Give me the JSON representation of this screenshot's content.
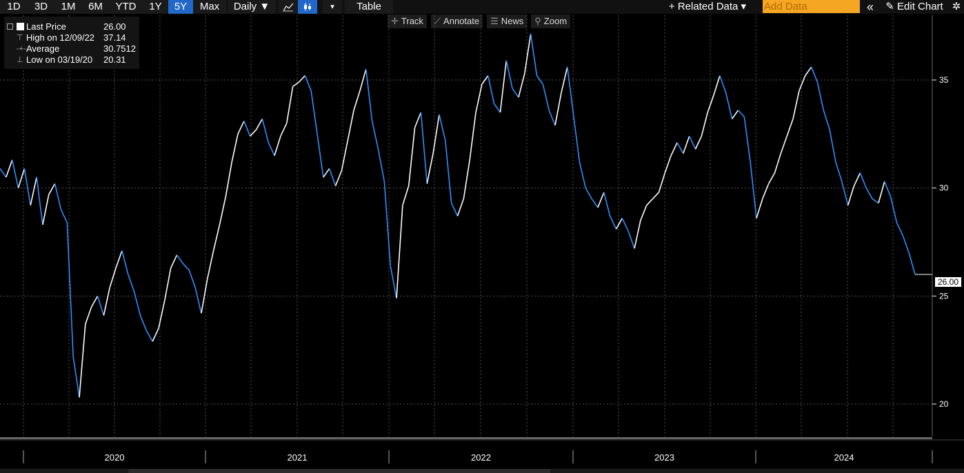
{
  "toolbar": {
    "ranges": [
      "1D",
      "3D",
      "1M",
      "6M",
      "YTD",
      "1Y",
      "5Y",
      "Max"
    ],
    "active_range": "5Y",
    "frequency": "Daily ▼",
    "dropdown_caret": "▾",
    "table_label": "Table",
    "related_data": "+ Related Data ▾",
    "add_data_placeholder": "Add Data",
    "collapse_icon_glyph": "«",
    "edit_chart": "✎ Edit Chart",
    "settings_glyph": "✲"
  },
  "subbar": {
    "track": "Track",
    "annotate": "Annotate",
    "news": "News",
    "zoom": "Zoom"
  },
  "legend": [
    {
      "name": "Last Price",
      "value": "26.00"
    },
    {
      "name": "High on 12/09/22",
      "value": "37.14"
    },
    {
      "name": "Average",
      "value": "30.7512"
    },
    {
      "name": "Low on 03/19/20",
      "value": "20.31"
    }
  ],
  "last_price_label": "26.00",
  "colors": {
    "background": "#000000",
    "price_up": "#ffffff",
    "price_down": "#2f8fff",
    "grid": "#555555"
  },
  "chart_data": {
    "type": "line",
    "title": "",
    "xlabel": "",
    "ylabel": "",
    "x_ticks": [
      "2020",
      "2021",
      "2022",
      "2023",
      "2024"
    ],
    "y_ticks": [
      20,
      25,
      30,
      35
    ],
    "ylim": [
      18.5,
      38
    ],
    "grid": true,
    "series": [
      {
        "values": [
          30.9,
          30.5,
          31.3,
          30.0,
          30.9,
          29.2,
          30.5,
          28.3,
          29.7,
          30.2,
          29.0,
          28.4,
          22.2,
          20.31,
          23.7,
          24.5,
          25.0,
          24.1,
          25.4,
          26.3,
          27.1,
          26.0,
          25.2,
          24.1,
          23.4,
          22.9,
          23.5,
          24.8,
          26.3,
          26.9,
          26.5,
          26.2,
          25.4,
          24.2,
          25.8,
          27.1,
          28.3,
          29.6,
          31.2,
          32.5,
          33.1,
          32.4,
          32.7,
          33.2,
          32.1,
          31.5,
          32.4,
          33.0,
          34.7,
          34.9,
          35.2,
          34.5,
          32.5,
          30.5,
          30.9,
          30.1,
          30.8,
          32.2,
          33.6,
          34.5,
          35.5,
          33.1,
          31.8,
          30.3,
          26.4,
          24.9,
          29.2,
          30.1,
          32.8,
          33.5,
          30.2,
          31.6,
          33.4,
          32.2,
          29.3,
          28.7,
          29.5,
          31.3,
          33.5,
          34.8,
          35.2,
          33.9,
          33.5,
          35.9,
          34.6,
          34.2,
          35.3,
          37.14,
          35.2,
          34.8,
          33.6,
          32.9,
          34.4,
          35.6,
          33.4,
          31.2,
          30.0,
          29.5,
          29.1,
          29.8,
          28.7,
          28.1,
          28.6,
          28.0,
          27.2,
          28.5,
          29.2,
          29.5,
          29.8,
          30.7,
          31.5,
          32.1,
          31.6,
          32.4,
          31.8,
          32.4,
          33.5,
          34.3,
          35.2,
          34.4,
          33.2,
          33.6,
          33.3,
          31.2,
          28.6,
          29.5,
          30.2,
          30.7,
          31.6,
          32.4,
          33.2,
          34.5,
          35.2,
          35.6,
          34.9,
          33.6,
          32.7,
          31.2,
          30.3,
          29.2,
          30.1,
          30.7,
          30.0,
          29.5,
          29.3,
          30.3,
          29.6,
          28.4,
          27.8,
          27.0,
          26.0
        ]
      }
    ]
  }
}
